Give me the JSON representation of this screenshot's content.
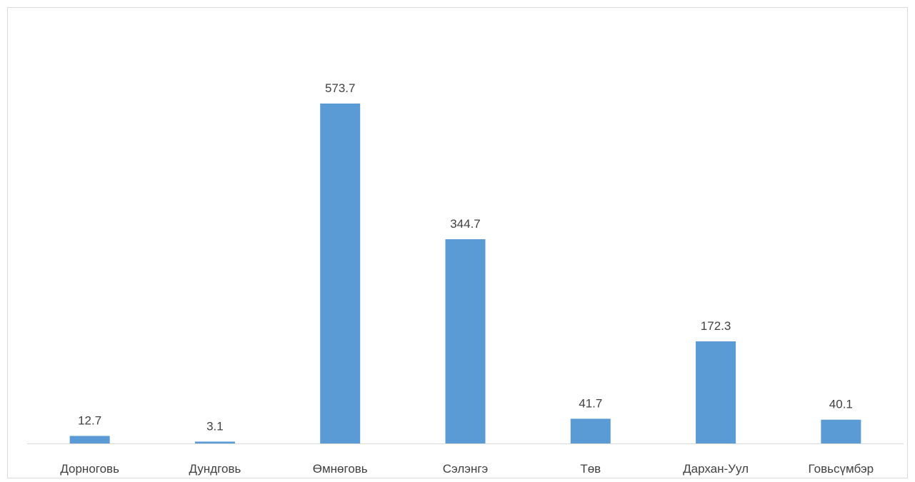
{
  "chart_data": {
    "type": "bar",
    "categories": [
      "Дорноговь",
      "Дундговь",
      "Өмнөговь",
      "Сэлэнгэ",
      "Төв",
      "Дархан-Уул",
      "Говьсүмбэр"
    ],
    "values": [
      12.7,
      3.1,
      573.7,
      344.7,
      41.7,
      172.3,
      40.1
    ],
    "data_labels": [
      "12.7",
      "3.1",
      "573.7",
      "344.7",
      "41.7",
      "172.3",
      "40.1"
    ],
    "title": "",
    "xlabel": "",
    "ylabel": "",
    "ylim": [
      0,
      650
    ],
    "grid": false,
    "legend": "none",
    "y_axis_visible": false,
    "colors": {
      "bar": "#5b9bd5",
      "axis": "#d9d9d9",
      "border": "#d9d9d9",
      "text": "#404040"
    }
  }
}
